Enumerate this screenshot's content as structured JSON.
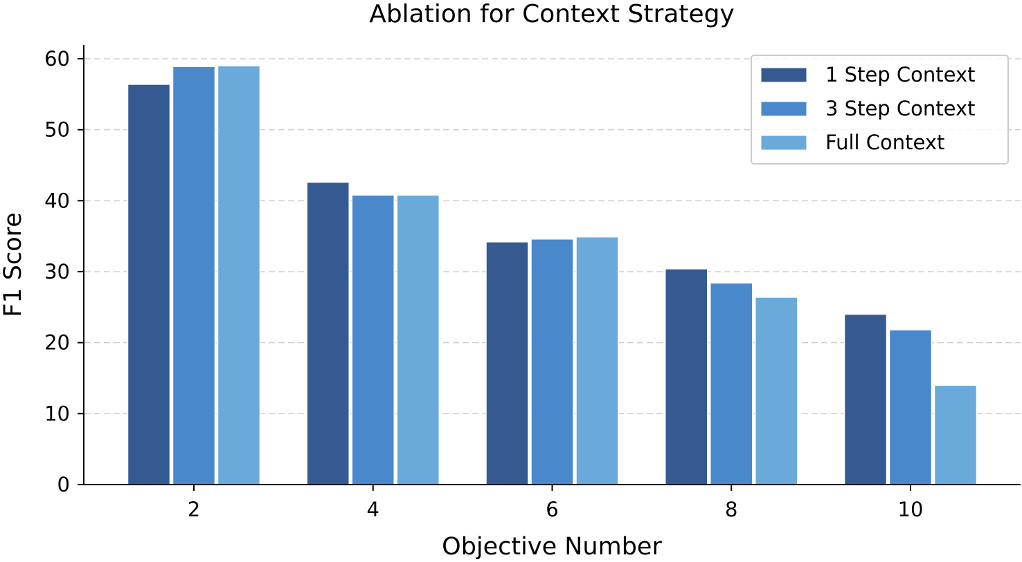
{
  "chart_data": {
    "type": "bar",
    "title": "Ablation for Context Strategy",
    "xlabel": "Objective Number",
    "ylabel": "F1 Score",
    "categories": [
      "2",
      "4",
      "6",
      "8",
      "10"
    ],
    "ylim": [
      0,
      62
    ],
    "yticks": [
      "0",
      "10",
      "20",
      "30",
      "40",
      "50",
      "60"
    ],
    "grid": "horizontal, dashed",
    "legend_position": "top-right",
    "series": [
      {
        "name": "1 Step Context",
        "color": "#355a92",
        "values": [
          56.4,
          42.6,
          34.2,
          30.4,
          24.0
        ]
      },
      {
        "name": "3 Step Context",
        "color": "#4a88cc",
        "values": [
          58.9,
          40.8,
          34.6,
          28.4,
          21.8
        ]
      },
      {
        "name": "Full Context",
        "color": "#6aaadb",
        "values": [
          59.0,
          40.8,
          34.9,
          26.4,
          14.0
        ]
      }
    ]
  }
}
